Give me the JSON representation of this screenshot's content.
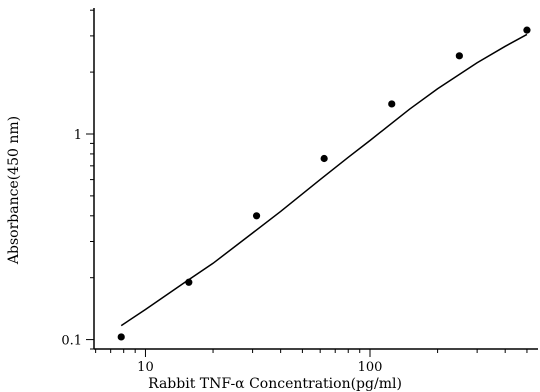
{
  "chart_data": {
    "type": "scatter",
    "title": "",
    "xlabel": "Rabbit TNF-α Concentration(pg/ml)",
    "ylabel": "Absorbance(450 nm)",
    "x_scale": "log",
    "y_scale": "log",
    "xlim": [
      5.9,
      560
    ],
    "ylim": [
      0.09,
      4.1
    ],
    "x_ticks": [
      10,
      100
    ],
    "x_tick_labels": [
      "10",
      "100"
    ],
    "y_ticks": [
      0.1,
      1
    ],
    "y_tick_labels": [
      "0.1",
      "1"
    ],
    "grid": false,
    "legend": "none",
    "points": {
      "x": [
        7.8,
        15.6,
        31.25,
        62.5,
        125,
        250,
        500
      ],
      "y": [
        0.103,
        0.19,
        0.4,
        0.76,
        1.4,
        2.4,
        3.2
      ]
    },
    "fit_curve": {
      "x": [
        7.8,
        10,
        15,
        20,
        30,
        40,
        60,
        80,
        100,
        150,
        200,
        300,
        400,
        500
      ],
      "y": [
        0.117,
        0.14,
        0.19,
        0.235,
        0.33,
        0.42,
        0.6,
        0.77,
        0.93,
        1.32,
        1.66,
        2.22,
        2.67,
        3.05
      ]
    },
    "colors": {
      "marker": "#000000",
      "line": "#000000",
      "axis": "#000000"
    }
  }
}
